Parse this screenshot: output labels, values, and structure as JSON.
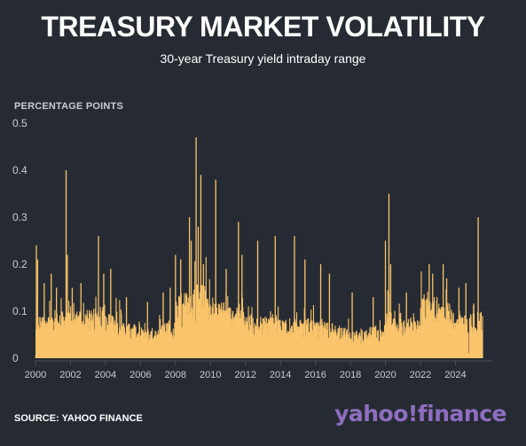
{
  "header": {
    "title": "TREASURY MARKET VOLATILITY",
    "subtitle": "30-year Treasury yield intraday range"
  },
  "footer": {
    "source": "SOURCE: YAHOO FINANCE",
    "logo_text": "yahoo!finance"
  },
  "colors": {
    "background": "#262b33",
    "series": "#f9c46b",
    "grid": "#4a505a",
    "axis_text": "#c8ccd2",
    "logo": "#8e6ec0"
  },
  "chart_data": {
    "type": "bar",
    "ylabel": "PERCENTAGE POINTS",
    "xlim": [
      2000,
      2025.6
    ],
    "ylim": [
      0,
      0.5
    ],
    "y_ticks": [
      "0",
      "0.1",
      "0.2",
      "0.3",
      "0.4",
      "0.5"
    ],
    "x_ticks": [
      "2000",
      "2002",
      "2004",
      "2006",
      "2008",
      "2010",
      "2012",
      "2014",
      "2016",
      "2018",
      "2020",
      "2022",
      "2024"
    ],
    "grid": false,
    "series": [
      {
        "frequency": "daily",
        "baseline_by_year": [
          [
            2000,
            0.045,
            0.09
          ],
          [
            2001,
            0.055,
            0.1
          ],
          [
            2002,
            0.055,
            0.1
          ],
          [
            2003,
            0.05,
            0.11
          ],
          [
            2004,
            0.045,
            0.1
          ],
          [
            2005,
            0.035,
            0.075
          ],
          [
            2006,
            0.03,
            0.065
          ],
          [
            2007,
            0.035,
            0.075
          ],
          [
            2008,
            0.06,
            0.14
          ],
          [
            2009,
            0.07,
            0.16
          ],
          [
            2010,
            0.055,
            0.12
          ],
          [
            2011,
            0.05,
            0.11
          ],
          [
            2012,
            0.04,
            0.09
          ],
          [
            2013,
            0.045,
            0.09
          ],
          [
            2014,
            0.04,
            0.085
          ],
          [
            2015,
            0.04,
            0.085
          ],
          [
            2016,
            0.035,
            0.08
          ],
          [
            2017,
            0.03,
            0.065
          ],
          [
            2018,
            0.03,
            0.06
          ],
          [
            2019,
            0.03,
            0.07
          ],
          [
            2020,
            0.04,
            0.1
          ],
          [
            2021,
            0.045,
            0.085
          ],
          [
            2022,
            0.06,
            0.13
          ],
          [
            2023,
            0.055,
            0.12
          ],
          [
            2024,
            0.045,
            0.09
          ],
          [
            2025,
            0.045,
            0.1
          ]
        ],
        "spikes": [
          [
            2000.05,
            0.24
          ],
          [
            2000.12,
            0.21
          ],
          [
            2000.5,
            0.16
          ],
          [
            2000.9,
            0.18
          ],
          [
            2001.2,
            0.15
          ],
          [
            2001.75,
            0.4
          ],
          [
            2001.82,
            0.22
          ],
          [
            2002.1,
            0.15
          ],
          [
            2002.6,
            0.16
          ],
          [
            2003.6,
            0.26
          ],
          [
            2003.9,
            0.18
          ],
          [
            2004.3,
            0.19
          ],
          [
            2005.2,
            0.13
          ],
          [
            2006.4,
            0.12
          ],
          [
            2007.3,
            0.14
          ],
          [
            2007.7,
            0.15
          ],
          [
            2008.0,
            0.22
          ],
          [
            2008.3,
            0.21
          ],
          [
            2008.8,
            0.3
          ],
          [
            2008.9,
            0.25
          ],
          [
            2009.18,
            0.47
          ],
          [
            2009.3,
            0.28
          ],
          [
            2009.45,
            0.39
          ],
          [
            2009.6,
            0.2
          ],
          [
            2010.3,
            0.38
          ],
          [
            2010.9,
            0.19
          ],
          [
            2011.6,
            0.29
          ],
          [
            2011.8,
            0.22
          ],
          [
            2012.7,
            0.25
          ],
          [
            2013.7,
            0.26
          ],
          [
            2014.8,
            0.26
          ],
          [
            2015.4,
            0.21
          ],
          [
            2016.3,
            0.2
          ],
          [
            2016.8,
            0.18
          ],
          [
            2018.1,
            0.14
          ],
          [
            2019.3,
            0.13
          ],
          [
            2020.0,
            0.25
          ],
          [
            2020.2,
            0.35
          ],
          [
            2020.3,
            0.2
          ],
          [
            2021.2,
            0.14
          ],
          [
            2022.5,
            0.2
          ],
          [
            2022.7,
            0.18
          ],
          [
            2023.3,
            0.2
          ],
          [
            2023.5,
            0.17
          ],
          [
            2024.2,
            0.15
          ],
          [
            2024.6,
            0.16
          ],
          [
            2025.3,
            0.3
          ]
        ]
      }
    ]
  }
}
